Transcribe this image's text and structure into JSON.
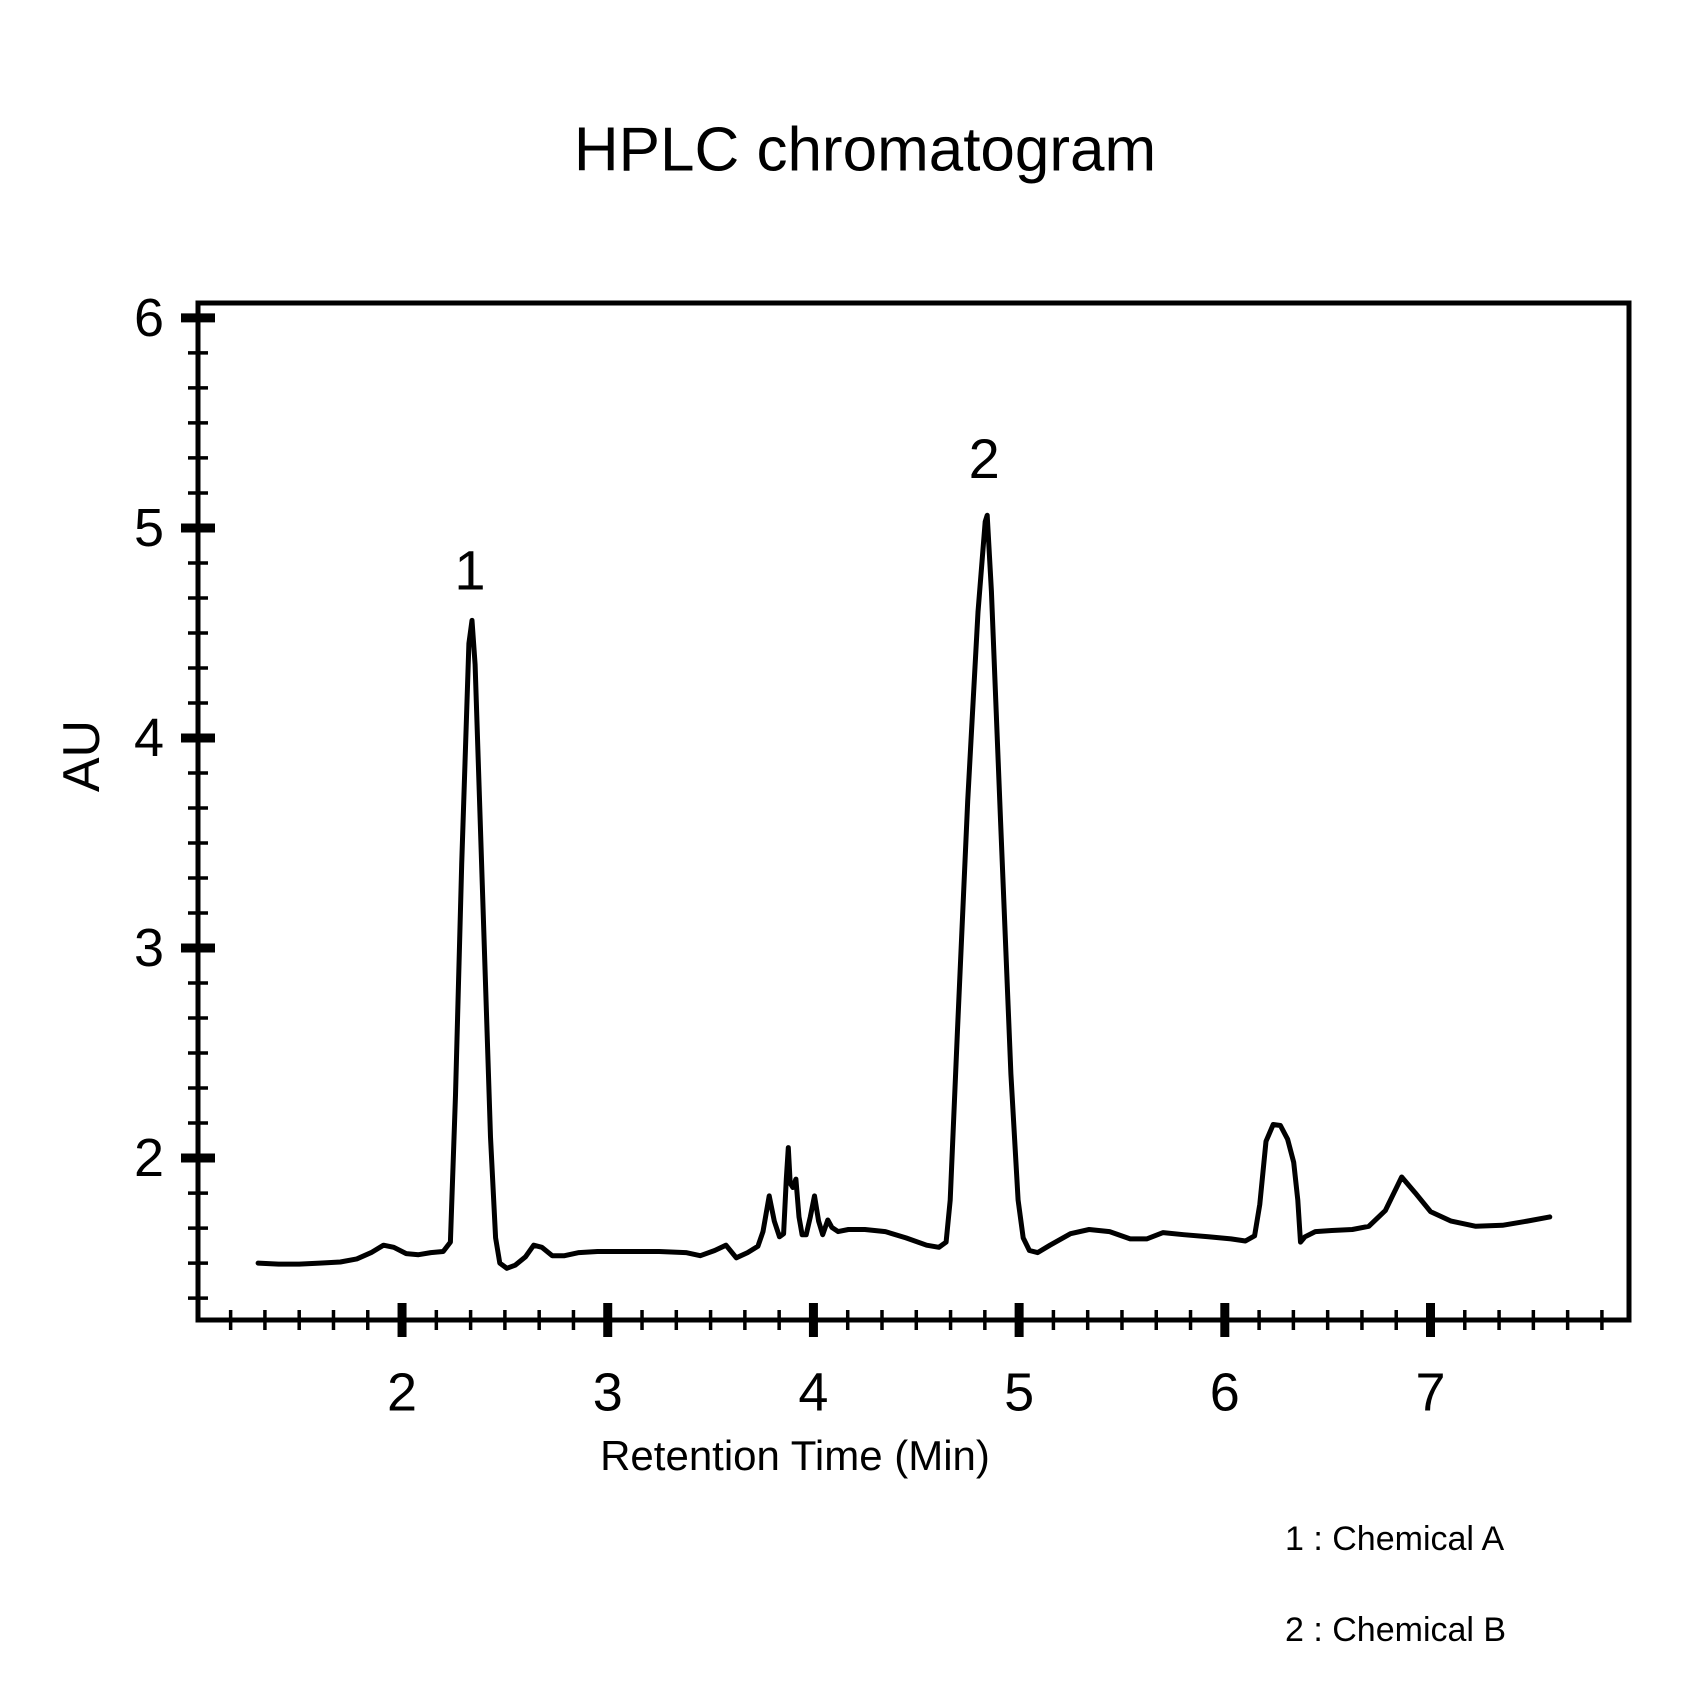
{
  "page": {
    "background": "#ffffff",
    "foreground": "#000000"
  },
  "chart_data": {
    "type": "line",
    "title": "HPLC chromatogram",
    "xlabel": "Retention Time (Min)",
    "ylabel": "AU",
    "x_ticks": [
      2,
      3,
      4,
      5,
      6,
      7
    ],
    "y_ticks": [
      2,
      3,
      4,
      5,
      6
    ],
    "x_range": [
      1.008,
      7.965
    ],
    "y_range": [
      1.229,
      6.071
    ],
    "minor_subdivisions_per_unit": 6,
    "grid": false,
    "legend_position": "bottom-right-outside",
    "line_color": "#000000",
    "background_color": "#ffffff",
    "legend": {
      "entries": [
        "1 : Chemical A",
        "2 : Chemical B"
      ]
    },
    "peaks": [
      {
        "label": "1",
        "retention_time": 2.34,
        "height_au": 4.56,
        "label_x": 2.33,
        "label_y": 4.8
      },
      {
        "label": "2",
        "retention_time": 4.84,
        "height_au": 5.06,
        "label_x": 4.83,
        "label_y": 5.33
      }
    ],
    "series": [
      {
        "name": "absorbance",
        "points": [
          [
            1.3,
            1.5
          ],
          [
            1.4,
            1.495
          ],
          [
            1.5,
            1.495
          ],
          [
            1.6,
            1.5
          ],
          [
            1.7,
            1.505
          ],
          [
            1.78,
            1.52
          ],
          [
            1.85,
            1.55
          ],
          [
            1.91,
            1.585
          ],
          [
            1.96,
            1.575
          ],
          [
            2.02,
            1.545
          ],
          [
            2.08,
            1.54
          ],
          [
            2.14,
            1.55
          ],
          [
            2.2,
            1.555
          ],
          [
            2.235,
            1.6
          ],
          [
            2.26,
            2.3
          ],
          [
            2.29,
            3.4
          ],
          [
            2.325,
            4.45
          ],
          [
            2.34,
            4.56
          ],
          [
            2.355,
            4.35
          ],
          [
            2.39,
            3.3
          ],
          [
            2.43,
            2.1
          ],
          [
            2.455,
            1.62
          ],
          [
            2.475,
            1.5
          ],
          [
            2.51,
            1.475
          ],
          [
            2.55,
            1.49
          ],
          [
            2.6,
            1.53
          ],
          [
            2.64,
            1.585
          ],
          [
            2.68,
            1.575
          ],
          [
            2.73,
            1.535
          ],
          [
            2.79,
            1.535
          ],
          [
            2.86,
            1.55
          ],
          [
            2.95,
            1.555
          ],
          [
            3.1,
            1.555
          ],
          [
            3.25,
            1.555
          ],
          [
            3.38,
            1.55
          ],
          [
            3.45,
            1.535
          ],
          [
            3.52,
            1.56
          ],
          [
            3.575,
            1.585
          ],
          [
            3.625,
            1.525
          ],
          [
            3.68,
            1.55
          ],
          [
            3.73,
            1.58
          ],
          [
            3.755,
            1.65
          ],
          [
            3.785,
            1.82
          ],
          [
            3.81,
            1.7
          ],
          [
            3.835,
            1.625
          ],
          [
            3.855,
            1.64
          ],
          [
            3.868,
            1.9
          ],
          [
            3.878,
            2.05
          ],
          [
            3.887,
            1.88
          ],
          [
            3.9,
            1.86
          ],
          [
            3.915,
            1.9
          ],
          [
            3.93,
            1.72
          ],
          [
            3.945,
            1.635
          ],
          [
            3.965,
            1.635
          ],
          [
            3.985,
            1.72
          ],
          [
            4.005,
            1.82
          ],
          [
            4.025,
            1.7
          ],
          [
            4.045,
            1.635
          ],
          [
            4.07,
            1.705
          ],
          [
            4.09,
            1.67
          ],
          [
            4.12,
            1.65
          ],
          [
            4.17,
            1.66
          ],
          [
            4.25,
            1.66
          ],
          [
            4.35,
            1.65
          ],
          [
            4.45,
            1.62
          ],
          [
            4.55,
            1.585
          ],
          [
            4.61,
            1.575
          ],
          [
            4.645,
            1.6
          ],
          [
            4.665,
            1.8
          ],
          [
            4.7,
            2.6
          ],
          [
            4.75,
            3.7
          ],
          [
            4.8,
            4.6
          ],
          [
            4.835,
            5.03
          ],
          [
            4.845,
            5.06
          ],
          [
            4.865,
            4.7
          ],
          [
            4.91,
            3.6
          ],
          [
            4.96,
            2.4
          ],
          [
            4.995,
            1.8
          ],
          [
            5.02,
            1.62
          ],
          [
            5.05,
            1.56
          ],
          [
            5.09,
            1.55
          ],
          [
            5.15,
            1.585
          ],
          [
            5.25,
            1.64
          ],
          [
            5.34,
            1.66
          ],
          [
            5.44,
            1.65
          ],
          [
            5.54,
            1.615
          ],
          [
            5.62,
            1.615
          ],
          [
            5.7,
            1.645
          ],
          [
            5.8,
            1.635
          ],
          [
            5.92,
            1.625
          ],
          [
            6.03,
            1.615
          ],
          [
            6.1,
            1.605
          ],
          [
            6.145,
            1.63
          ],
          [
            6.17,
            1.78
          ],
          [
            6.2,
            2.08
          ],
          [
            6.235,
            2.16
          ],
          [
            6.27,
            2.155
          ],
          [
            6.305,
            2.09
          ],
          [
            6.335,
            1.98
          ],
          [
            6.355,
            1.8
          ],
          [
            6.368,
            1.6
          ],
          [
            6.39,
            1.625
          ],
          [
            6.44,
            1.65
          ],
          [
            6.52,
            1.655
          ],
          [
            6.62,
            1.66
          ],
          [
            6.7,
            1.675
          ],
          [
            6.78,
            1.75
          ],
          [
            6.86,
            1.91
          ],
          [
            6.925,
            1.835
          ],
          [
            7.0,
            1.745
          ],
          [
            7.1,
            1.7
          ],
          [
            7.22,
            1.675
          ],
          [
            7.35,
            1.68
          ],
          [
            7.47,
            1.7
          ],
          [
            7.58,
            1.72
          ]
        ]
      }
    ]
  }
}
